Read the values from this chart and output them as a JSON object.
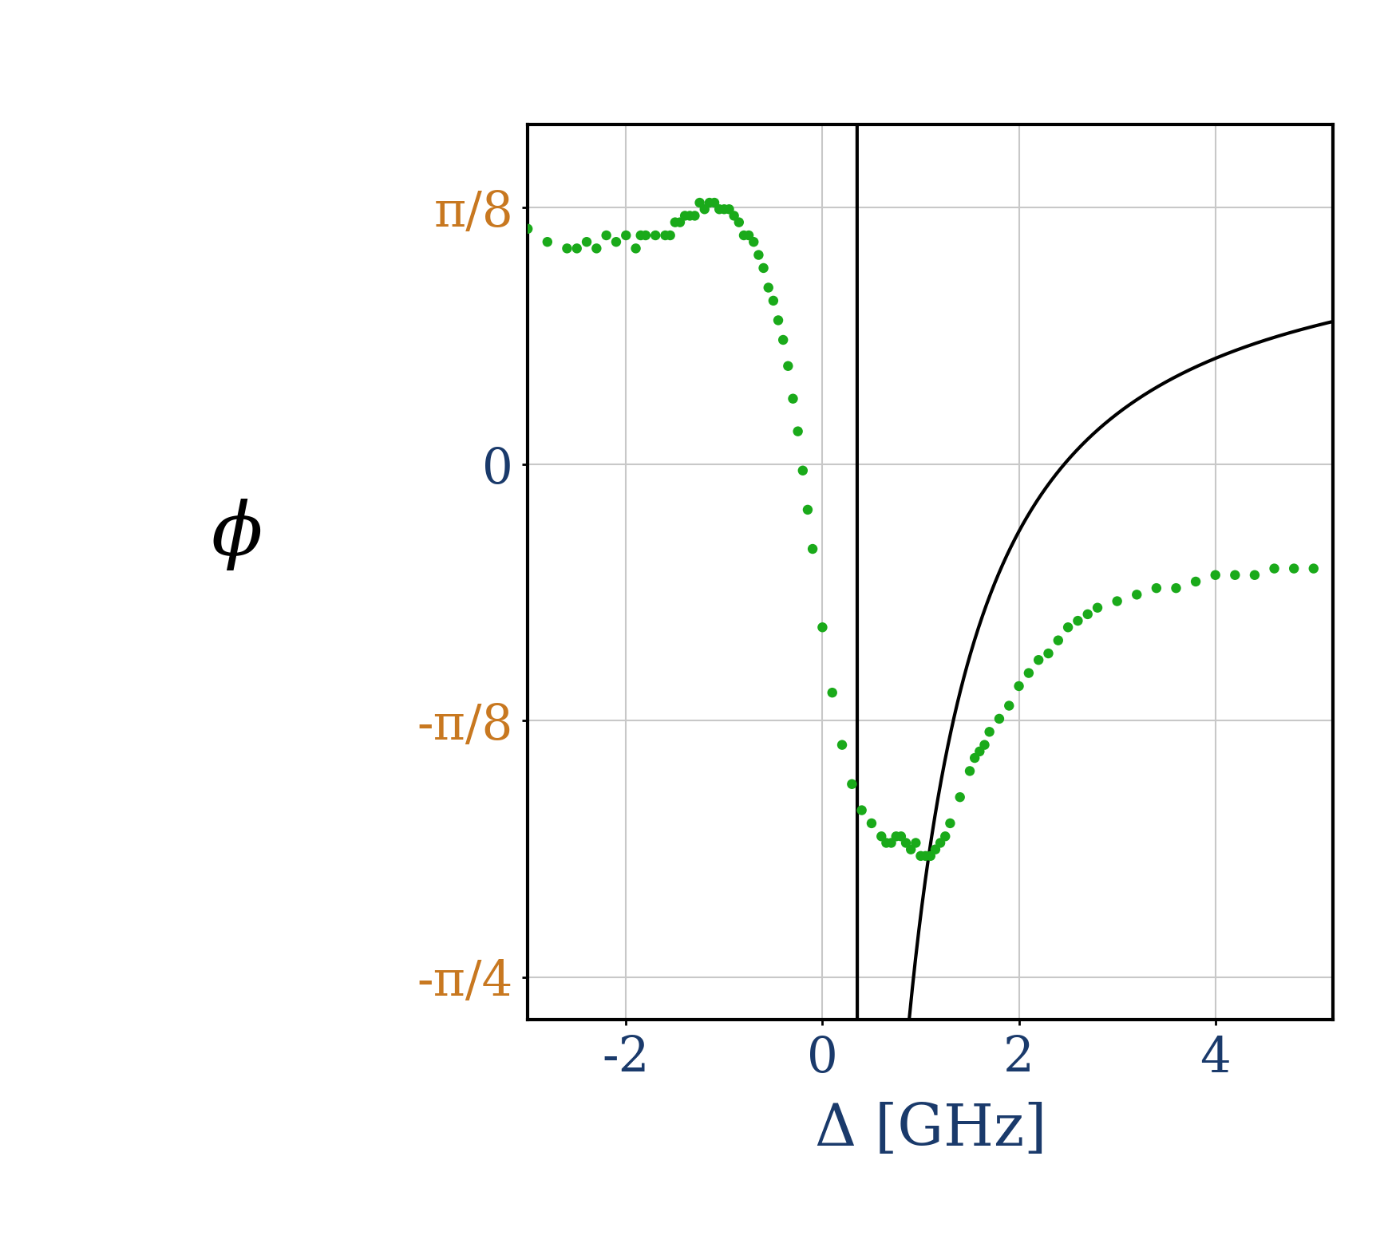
{
  "xlim": [
    -3.0,
    5.2
  ],
  "ylim": [
    -0.85,
    0.52
  ],
  "xticks": [
    -2,
    0,
    2,
    4
  ],
  "ytick_vals": [
    0.3927,
    0.0,
    -0.3927,
    -0.7854
  ],
  "ytick_labels": [
    "π/8",
    "0",
    "-π/8",
    "-π/4"
  ],
  "xlabel": "Δ [GHz]",
  "ylabel": "ϕ",
  "dot_color": "#1aaa1a",
  "line_color": "#000000",
  "grid_color": "#c8c8c8",
  "label_color_frac": "#c87820",
  "label_color_num": "#1a3a6b",
  "ylabel_color": "#000000",
  "background_color": "#ffffff",
  "plot_bg_color": "#ffffff",
  "scatter_size": 80,
  "line_width": 3.0,
  "font_size_ticks": 44,
  "font_size_xlabel": 52,
  "font_size_ylabel": 68,
  "Gamma_1D": 0.85,
  "Gamma": 1.3,
  "delta0": 0.35,
  "phi_shift": 0.3927,
  "curve_x_min": -3.0,
  "curve_x_max": 5.2,
  "curve_n_points": 1000,
  "scatter_x": [
    -3.0,
    -2.8,
    -2.6,
    -2.5,
    -2.4,
    -2.3,
    -2.2,
    -2.1,
    -2.0,
    -1.9,
    -1.85,
    -1.8,
    -1.7,
    -1.6,
    -1.55,
    -1.5,
    -1.45,
    -1.4,
    -1.35,
    -1.3,
    -1.25,
    -1.2,
    -1.15,
    -1.1,
    -1.05,
    -1.0,
    -0.95,
    -0.9,
    -0.85,
    -0.8,
    -0.75,
    -0.7,
    -0.65,
    -0.6,
    -0.55,
    -0.5,
    -0.45,
    -0.4,
    -0.35,
    -0.3,
    -0.25,
    -0.2,
    -0.15,
    -0.1,
    0.0,
    0.1,
    0.2,
    0.3,
    0.4,
    0.5,
    0.6,
    0.65,
    0.7,
    0.75,
    0.8,
    0.85,
    0.9,
    0.95,
    1.0,
    1.05,
    1.1,
    1.15,
    1.2,
    1.25,
    1.3,
    1.4,
    1.5,
    1.55,
    1.6,
    1.65,
    1.7,
    1.8,
    1.9,
    2.0,
    2.1,
    2.2,
    2.3,
    2.4,
    2.5,
    2.6,
    2.7,
    2.8,
    3.0,
    3.2,
    3.4,
    3.6,
    3.8,
    4.0,
    4.2,
    4.4,
    4.6,
    4.8,
    5.0
  ],
  "scatter_y": [
    0.36,
    0.34,
    0.33,
    0.33,
    0.34,
    0.33,
    0.35,
    0.34,
    0.35,
    0.33,
    0.35,
    0.35,
    0.35,
    0.35,
    0.35,
    0.37,
    0.37,
    0.38,
    0.38,
    0.38,
    0.4,
    0.39,
    0.4,
    0.4,
    0.39,
    0.39,
    0.39,
    0.38,
    0.37,
    0.35,
    0.35,
    0.34,
    0.32,
    0.3,
    0.27,
    0.25,
    0.22,
    0.19,
    0.15,
    0.1,
    0.05,
    -0.01,
    -0.07,
    -0.13,
    -0.25,
    -0.35,
    -0.43,
    -0.49,
    -0.53,
    -0.55,
    -0.57,
    -0.58,
    -0.58,
    -0.57,
    -0.57,
    -0.58,
    -0.59,
    -0.58,
    -0.6,
    -0.6,
    -0.6,
    -0.59,
    -0.58,
    -0.57,
    -0.55,
    -0.51,
    -0.47,
    -0.45,
    -0.44,
    -0.43,
    -0.41,
    -0.39,
    -0.37,
    -0.34,
    -0.32,
    -0.3,
    -0.29,
    -0.27,
    -0.25,
    -0.24,
    -0.23,
    -0.22,
    -0.21,
    -0.2,
    -0.19,
    -0.19,
    -0.18,
    -0.17,
    -0.17,
    -0.17,
    -0.16,
    -0.16,
    -0.16
  ]
}
